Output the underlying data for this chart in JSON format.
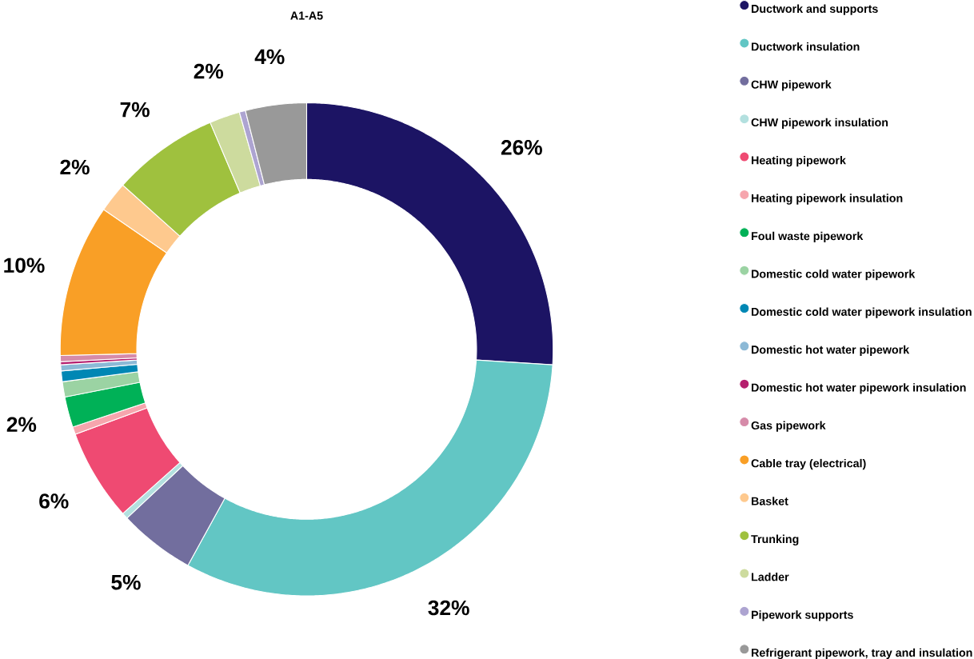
{
  "chart_data": {
    "type": "donut",
    "title": "A1-A5",
    "categories": [
      "Ductwork and supports",
      "Ductwork insulation",
      "CHW pipework",
      "CHW pipework insulation",
      "Heating pipework",
      "Heating pipework insulation",
      "Foul waste pipework",
      "Domestic cold water pipework",
      "Domestic cold water pipework insulation",
      "Domestic hot water pipework",
      "Domestic hot water pipework insulation",
      "Gas pipework",
      "Cable tray (electrical)",
      "Basket",
      "Trunking",
      "Ladder",
      "Pipework supports",
      "Refrigerant pipework, tray and insulation"
    ],
    "values": [
      26,
      32,
      5,
      0.4,
      6,
      0.5,
      2,
      1.0,
      0.7,
      0.4,
      0.2,
      0.4,
      10,
      2,
      7,
      2,
      0.4,
      4
    ],
    "value_labels": [
      "26%",
      "32%",
      "5%",
      null,
      "6%",
      null,
      "2%",
      null,
      null,
      null,
      null,
      null,
      "10%",
      "2%",
      "7%",
      "2%",
      null,
      "4%"
    ],
    "colors": [
      "#1c1464",
      "#62c6c4",
      "#726e9e",
      "#b3e0df",
      "#ef4a72",
      "#f6a5ad",
      "#00b157",
      "#9bd3a3",
      "#0087b4",
      "#8cb9d6",
      "#b51f6e",
      "#d68ba9",
      "#f99f26",
      "#fec98e",
      "#9fc13e",
      "#cddb9e",
      "#ada4d1",
      "#999999"
    ],
    "legend": "right"
  }
}
